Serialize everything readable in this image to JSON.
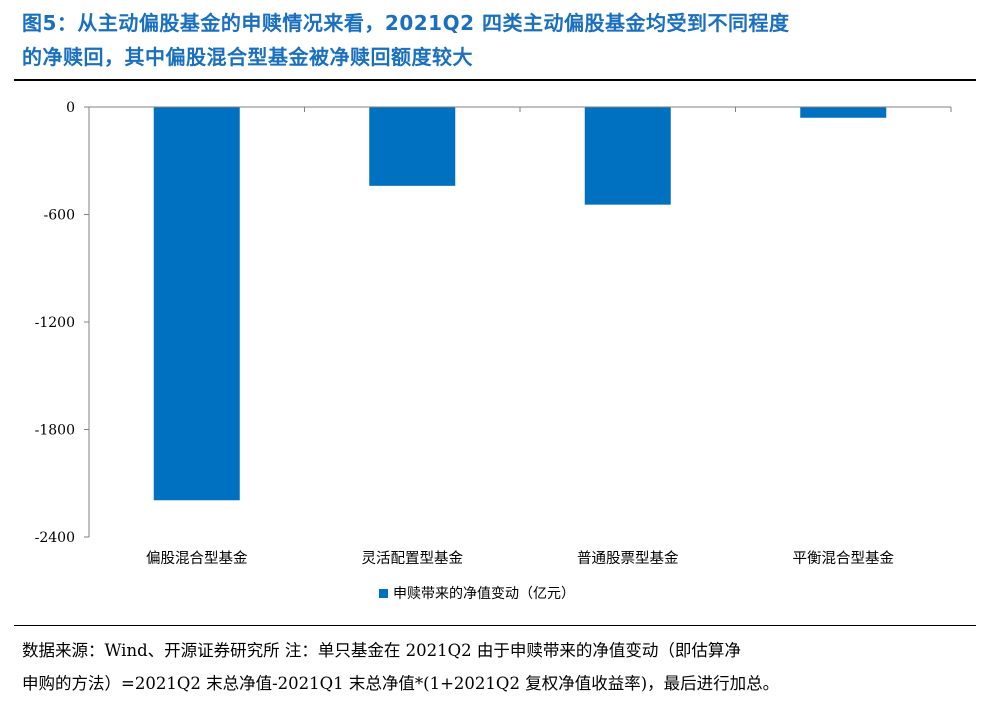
{
  "title": {
    "line1": "图5：从主动偏股基金的申赎情况来看，2021Q2 四类主动偏股基金均受到不同程度",
    "line2": "的净赎回，其中偏股混合型基金被净赎回额度较大"
  },
  "chart_data": {
    "type": "bar",
    "categories": [
      "偏股混合型基金",
      "灵活配置型基金",
      "普通股票型基金",
      "平衡混合型基金"
    ],
    "series": [
      {
        "name": "申赎带来的净值变动（亿元）",
        "values": [
          -2195,
          -440,
          -545,
          -60
        ],
        "color": "#0070c0"
      }
    ],
    "ylim": [
      -2400,
      0
    ],
    "yticks": [
      0,
      -600,
      -1200,
      -1800,
      -2400
    ],
    "ytick_labels": [
      "0",
      "-600",
      "-1200",
      "-1800",
      "-2400"
    ],
    "legend_position": "bottom-center",
    "grid": false
  },
  "footer": {
    "line1": "数据来源：Wind、开源证券研究所 注：单只基金在 2021Q2 由于申赎带来的净值变动（即估算净",
    "line2": "申购的方法）=2021Q2 末总净值-2021Q1 末总净值*(1+2021Q2 复权净值收益率)，最后进行加总。"
  }
}
